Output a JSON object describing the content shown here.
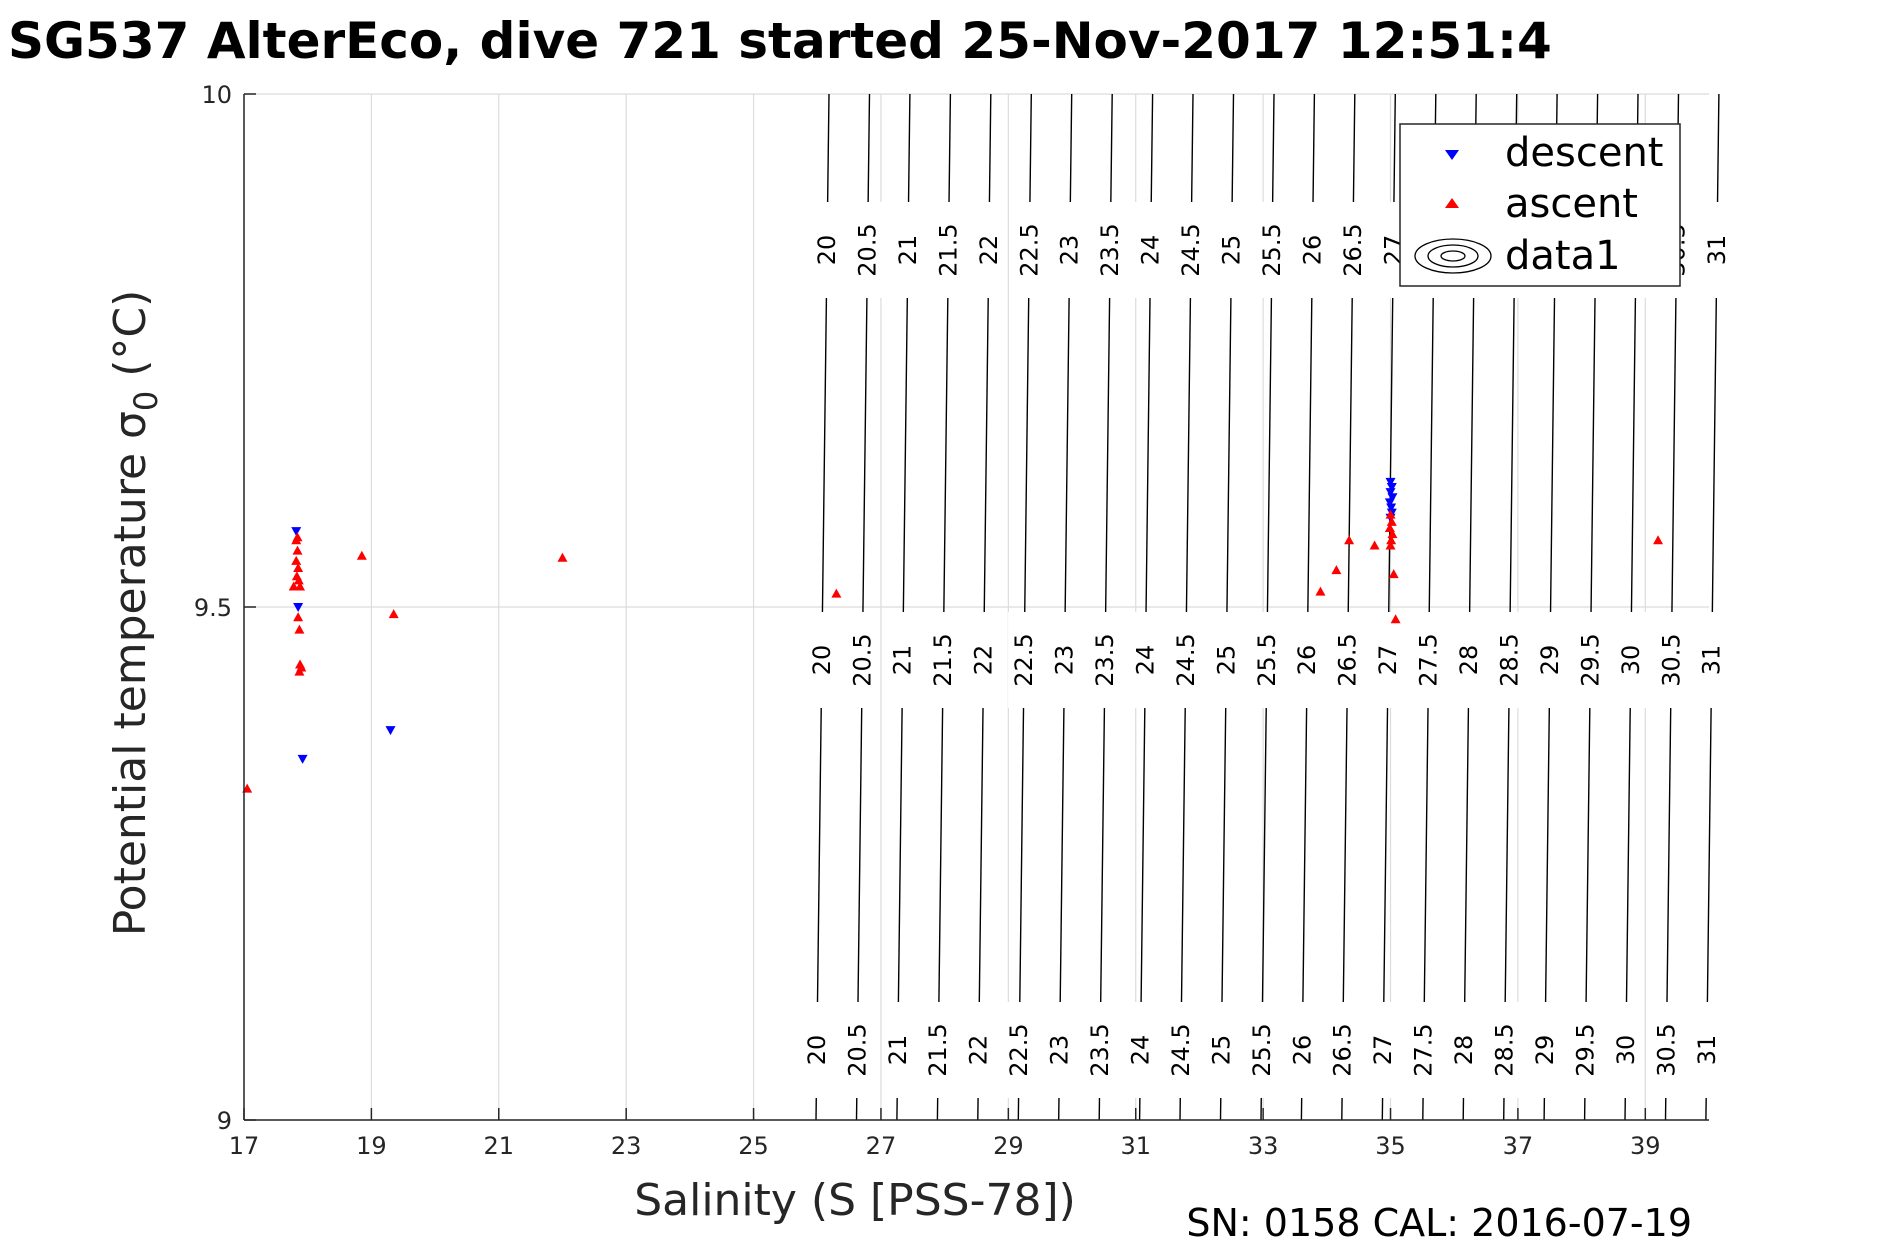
{
  "chart_data": {
    "type": "scatter",
    "title": "SG537 AlterEco, dive 721 started 25-Nov-2017 12:51:4",
    "xlabel": "Salinity (S [PSS-78])",
    "ylabel_main": "Potential temperature σ",
    "ylabel_sub": "0",
    "ylabel_unit": " (°C)",
    "xlim": [
      17,
      40
    ],
    "ylim": [
      9,
      10
    ],
    "xticks": [
      17,
      19,
      21,
      23,
      25,
      27,
      29,
      31,
      33,
      35,
      37,
      39
    ],
    "yticks": [
      9,
      9.5,
      10
    ],
    "ytick_labels": [
      "9",
      "9.5",
      "10"
    ],
    "grid": true,
    "legend_position": "top-right",
    "legend": [
      {
        "label": "descent",
        "color": "#0000ff",
        "marker": "triangle-down"
      },
      {
        "label": "ascent",
        "color": "#ff0000",
        "marker": "triangle-up"
      },
      {
        "label": "data1",
        "color": "#000000",
        "marker": "contour"
      }
    ],
    "series": [
      {
        "name": "descent",
        "color": "#0000ff",
        "points": [
          [
            17.82,
            9.574
          ],
          [
            17.85,
            9.5
          ],
          [
            17.92,
            9.352
          ],
          [
            19.3,
            9.38
          ],
          [
            35.0,
            9.622
          ],
          [
            35.02,
            9.617
          ],
          [
            35.0,
            9.612
          ],
          [
            35.03,
            9.607
          ],
          [
            34.99,
            9.602
          ],
          [
            35.01,
            9.597
          ],
          [
            35.02,
            9.592
          ],
          [
            35.0,
            9.587
          ]
        ]
      },
      {
        "name": "ascent",
        "color": "#ff0000",
        "points": [
          [
            17.05,
            9.323
          ],
          [
            17.78,
            9.52
          ],
          [
            17.88,
            9.52
          ],
          [
            17.82,
            9.565
          ],
          [
            17.84,
            9.555
          ],
          [
            17.82,
            9.545
          ],
          [
            17.85,
            9.538
          ],
          [
            17.83,
            9.53
          ],
          [
            17.86,
            9.526
          ],
          [
            17.84,
            9.568
          ],
          [
            17.85,
            9.49
          ],
          [
            17.87,
            9.478
          ],
          [
            17.88,
            9.444
          ],
          [
            17.9,
            9.441
          ],
          [
            17.87,
            9.437
          ],
          [
            18.85,
            9.55
          ],
          [
            19.35,
            9.493
          ],
          [
            22.0,
            9.548
          ],
          [
            26.3,
            9.513
          ],
          [
            33.9,
            9.515
          ],
          [
            34.15,
            9.536
          ],
          [
            34.35,
            9.565
          ],
          [
            34.75,
            9.56
          ],
          [
            35.0,
            9.59
          ],
          [
            35.02,
            9.583
          ],
          [
            34.99,
            9.577
          ],
          [
            35.03,
            9.571
          ],
          [
            35.01,
            9.565
          ],
          [
            35.0,
            9.56
          ],
          [
            35.05,
            9.532
          ],
          [
            35.08,
            9.488
          ],
          [
            39.2,
            9.565
          ]
        ]
      }
    ],
    "contour_levels": [
      "20",
      "20.5",
      "21",
      "21.5",
      "22",
      "22.5",
      "23",
      "23.5",
      "24",
      "24.5",
      "25",
      "25.5",
      "26",
      "26.5",
      "27",
      "27.5",
      "28",
      "28.5",
      "29",
      "29.5",
      "30",
      "30.5",
      "31"
    ],
    "footer": "SN: 0158  CAL: 2016-07-19"
  }
}
